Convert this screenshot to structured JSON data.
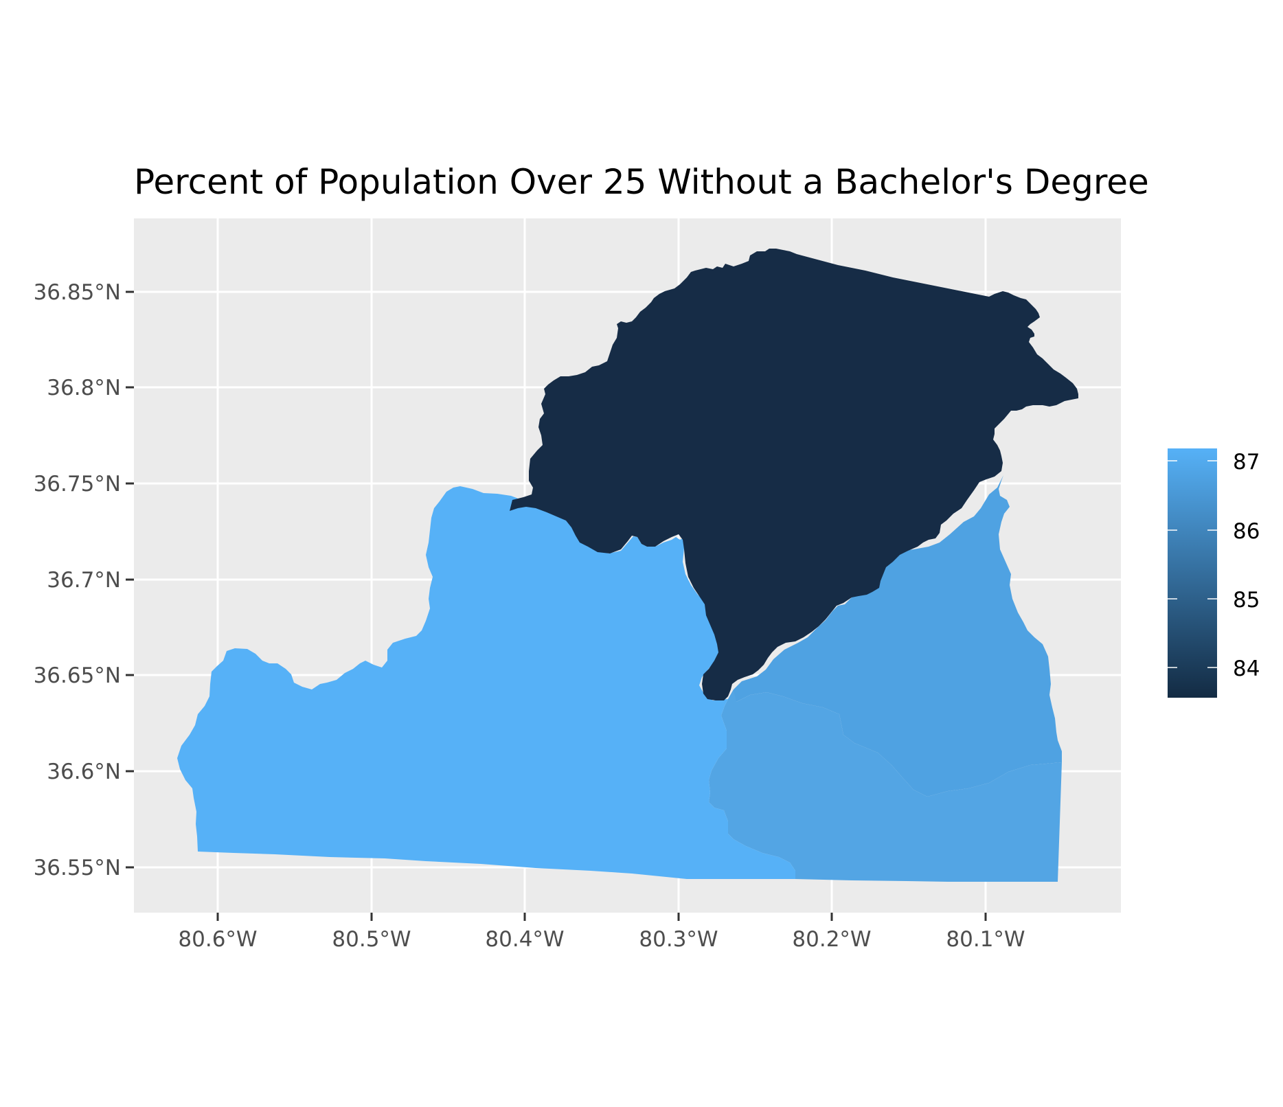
{
  "title": "Percent of Population Over 25 Without a Bachelor's Degree",
  "panel": {
    "background": "#ebebeb",
    "gridline": "#ffffff"
  },
  "axes": {
    "x": {
      "ticks": [
        "80.6°W",
        "80.5°W",
        "80.4°W",
        "80.3°W",
        "80.2°W",
        "80.1°W"
      ]
    },
    "y": {
      "ticks": [
        "36.85°N",
        "36.8°N",
        "36.75°N",
        "36.7°N",
        "36.65°N",
        "36.6°N",
        "36.55°N"
      ]
    }
  },
  "legend": {
    "ticks": [
      "87",
      "86",
      "85",
      "84"
    ],
    "color_low": "#132b43",
    "color_high": "#56b1f7"
  },
  "regions": [
    {
      "name": "west",
      "color": "#56b1f7"
    },
    {
      "name": "north",
      "color": "#162c46"
    },
    {
      "name": "east",
      "color": "#4fa2e2"
    },
    {
      "name": "southeast",
      "color": "#53a5e4"
    }
  ]
}
